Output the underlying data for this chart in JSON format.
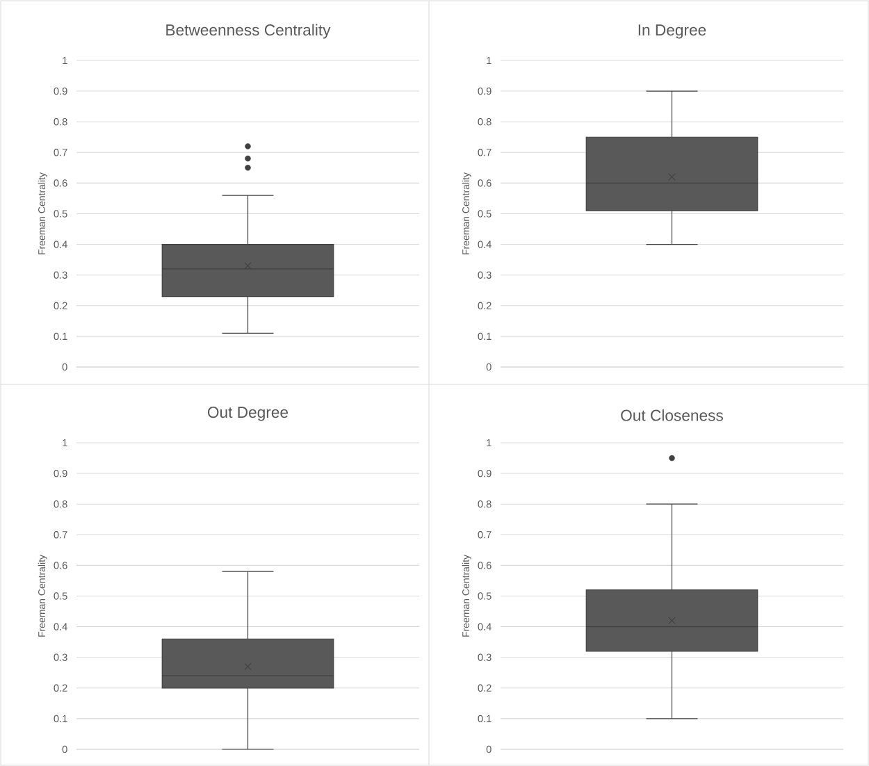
{
  "chart_data": [
    {
      "type": "box",
      "title": "Betweenness Centrality",
      "ylabel": "Freeman Centrality",
      "categories": [
        null
      ],
      "color": "#595959",
      "ylim": [
        0,
        1
      ],
      "yticks": [
        0,
        0.1,
        0.2,
        0.3,
        0.4,
        0.5,
        0.6,
        0.7,
        0.8,
        0.9,
        1
      ],
      "grid": "y",
      "boxes": [
        {
          "low": 0.11,
          "q1": 0.23,
          "median": 0.32,
          "q3": 0.4,
          "high": 0.56,
          "mean": 0.33,
          "outliers": [
            0.72,
            0.68,
            0.65
          ]
        }
      ]
    },
    {
      "type": "box",
      "title": "In Degree",
      "ylabel": "Freeman Centrality",
      "categories": [
        null
      ],
      "color": "#595959",
      "ylim": [
        0,
        1
      ],
      "yticks": [
        0,
        0.1,
        0.2,
        0.3,
        0.4,
        0.5,
        0.6,
        0.7,
        0.8,
        0.9,
        1
      ],
      "grid": "y",
      "boxes": [
        {
          "low": 0.4,
          "q1": 0.51,
          "median": 0.6,
          "q3": 0.75,
          "high": 0.9,
          "mean": 0.62
        }
      ]
    },
    {
      "type": "box",
      "title": "Out Degree",
      "ylabel": "Freeman Centrality",
      "categories": [
        null
      ],
      "color": "#595959",
      "ylim": [
        0,
        1
      ],
      "yticks": [
        0,
        0.1,
        0.2,
        0.3,
        0.4,
        0.5,
        0.6,
        0.7,
        0.8,
        0.9,
        1
      ],
      "grid": "y",
      "boxes": [
        {
          "low": 0,
          "q1": 0.2,
          "median": 0.24,
          "q3": 0.36,
          "high": 0.58,
          "mean": 0.27
        }
      ]
    },
    {
      "type": "box",
      "title": "Out Closeness",
      "ylabel": "Freeman Centrality",
      "categories": [
        null
      ],
      "color": "#595959",
      "ylim": [
        0,
        1
      ],
      "yticks": [
        0,
        0.1,
        0.2,
        0.3,
        0.4,
        0.5,
        0.6,
        0.7,
        0.8,
        0.9,
        1
      ],
      "grid": "y",
      "boxes": [
        {
          "low": 0.1,
          "q1": 0.32,
          "median": 0.4,
          "q3": 0.52,
          "high": 0.8,
          "mean": 0.42,
          "outliers": [
            0.95
          ]
        }
      ]
    }
  ]
}
